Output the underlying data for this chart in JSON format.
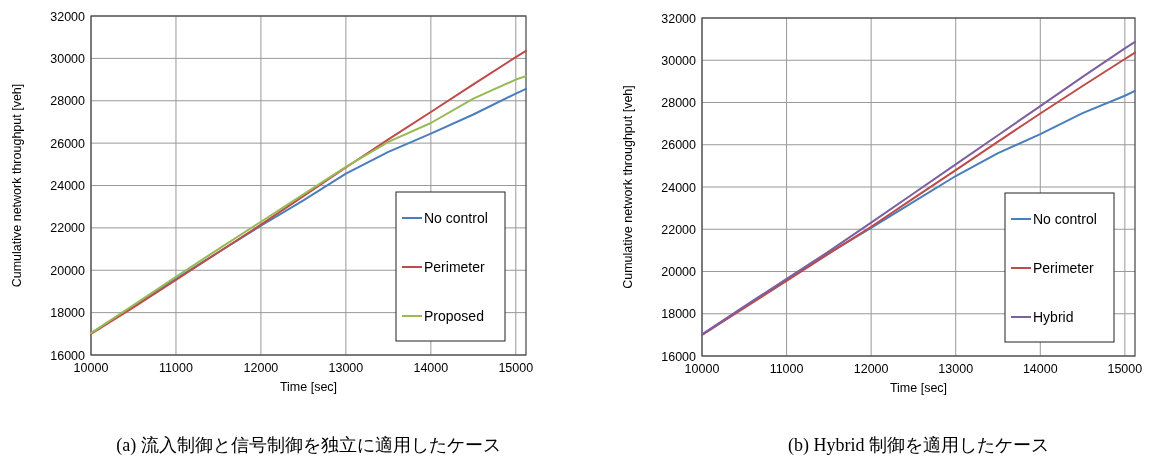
{
  "chart_data": [
    {
      "type": "line",
      "xlabel": "Time [sec]",
      "ylabel": "Cumulative network throughput [veh]",
      "xlim": [
        10000,
        15120
      ],
      "ylim": [
        16000,
        32000
      ],
      "xticks": [
        10000,
        11000,
        12000,
        13000,
        14000,
        15000
      ],
      "yticks": [
        16000,
        18000,
        20000,
        22000,
        24000,
        26000,
        28000,
        30000,
        32000
      ],
      "grid": true,
      "legend": "bottom right",
      "marker": "none",
      "line_style": "solid",
      "x": [
        10000,
        10500,
        11000,
        11500,
        12000,
        12500,
        13000,
        13500,
        14000,
        14500,
        15000,
        15120
      ],
      "series": [
        {
          "name": "No control",
          "color": "#4a7ebb",
          "values": [
            17020,
            18300,
            19600,
            20850,
            22100,
            23300,
            24560,
            25590,
            26450,
            27350,
            28340,
            28560
          ]
        },
        {
          "name": "Perimeter",
          "color": "#be4b48",
          "values": [
            17000,
            18250,
            19540,
            20850,
            22150,
            23500,
            24850,
            26180,
            27470,
            28770,
            30060,
            30350
          ]
        },
        {
          "name": "Proposed",
          "color": "#98b954",
          "values": [
            17030,
            18350,
            19690,
            21000,
            22290,
            23580,
            24880,
            26060,
            26950,
            28100,
            29000,
            29160
          ]
        }
      ],
      "annotations": [
        "(a) 流入制御と信号制御を独立に適用したケース"
      ]
    },
    {
      "type": "line",
      "xlabel": "Time [sec]",
      "ylabel": "Cumulative network throughput [veh]",
      "xlim": [
        10000,
        15120
      ],
      "ylim": [
        16000,
        32000
      ],
      "xticks": [
        10000,
        11000,
        12000,
        13000,
        14000,
        15000
      ],
      "yticks": [
        16000,
        18000,
        20000,
        22000,
        24000,
        26000,
        28000,
        30000,
        32000
      ],
      "grid": true,
      "legend": "bottom right",
      "marker": "none",
      "line_style": "solid",
      "x": [
        10000,
        10500,
        11000,
        11500,
        12000,
        12500,
        13000,
        13500,
        14000,
        14500,
        15000,
        15120
      ],
      "series": [
        {
          "name": "No control",
          "color": "#4a7ebb",
          "values": [
            17000,
            18320,
            19620,
            20870,
            22070,
            23300,
            24520,
            25600,
            26500,
            27500,
            28320,
            28550
          ]
        },
        {
          "name": "Perimeter",
          "color": "#be4b48",
          "values": [
            17000,
            18280,
            19560,
            20850,
            22120,
            23460,
            24800,
            26150,
            27480,
            28780,
            30060,
            30360
          ]
        },
        {
          "name": "Hybrid",
          "color": "#7d60a0",
          "values": [
            17020,
            18350,
            19650,
            20950,
            22310,
            23690,
            25070,
            26450,
            27830,
            29210,
            30560,
            30870
          ]
        }
      ],
      "annotations": [
        "(b) Hybrid 制御を適用したケース"
      ]
    }
  ]
}
